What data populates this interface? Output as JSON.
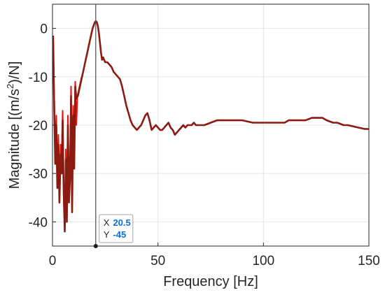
{
  "chart_data": {
    "type": "line",
    "xlabel": "Frequency [Hz]",
    "ylabel_main": "Magnitude [(m/s",
    "ylabel_sup": "2",
    "ylabel_tail": ")/N]",
    "xlim": [
      0,
      150
    ],
    "ylim": [
      -45,
      5
    ],
    "xticks": [
      "0",
      "50",
      "100",
      "150"
    ],
    "yticks": [
      "0",
      "-10",
      "-20",
      "-30",
      "-40"
    ],
    "grid": true,
    "colors": {
      "dark_series": "#8b1a10",
      "bright_series": "#e8140c",
      "axis": "#262626",
      "grid": "#e5e5e5",
      "datatip_value": "#0b6fd6"
    },
    "series": [
      {
        "values_x": [
          0.3,
          0.8,
          1.3,
          1.8,
          2.3,
          2.8,
          3.3,
          3.8,
          4.3,
          4.8,
          5.3,
          5.8,
          6.3,
          6.8,
          7.3,
          7.8,
          8.3,
          8.8,
          9.3,
          9.8,
          10.3,
          10.8,
          11.3,
          11.8,
          12.3,
          12.8,
          13.3,
          13.8
        ],
        "values_y": [
          -2,
          -14,
          -26,
          -18,
          -30,
          -22,
          -35,
          -24,
          -28,
          -17,
          -32,
          -41,
          -25,
          -38,
          -18,
          -34,
          -29,
          -12,
          -36,
          -16,
          -27,
          -11,
          -20,
          -14,
          -13,
          -12,
          -11,
          -10
        ]
      },
      {
        "values_x": [
          0.3,
          0.8,
          1.3,
          1.8,
          2.3,
          2.8,
          3.3,
          3.8,
          4.3,
          4.8,
          5.3,
          5.8,
          6.3,
          6.8,
          7.3,
          7.8,
          8.3,
          8.8,
          9.3,
          9.8,
          10.3,
          10.8,
          11.3,
          12,
          13,
          14,
          15,
          16,
          17,
          18,
          19,
          20,
          20.5,
          21,
          21.5,
          22,
          22.5,
          23,
          23.5,
          24,
          25,
          26,
          27,
          28,
          29,
          30,
          31,
          32,
          33,
          34,
          35,
          36,
          37,
          38,
          39,
          40,
          41,
          42,
          43,
          44,
          45,
          46,
          47,
          48,
          49,
          50,
          51,
          52,
          53,
          54,
          55,
          56,
          57,
          58,
          59,
          60,
          61,
          62,
          63,
          64,
          65,
          66,
          67,
          68,
          70,
          72,
          75,
          78,
          80,
          85,
          90,
          95,
          100,
          103,
          105,
          108,
          110,
          112,
          115,
          118,
          120,
          123,
          125,
          128,
          130,
          133,
          135,
          138,
          140,
          143,
          145,
          148,
          150
        ],
        "values_y": [
          -1.5,
          -16,
          -28,
          -20,
          -33,
          -24,
          -36,
          -26,
          -30,
          -19,
          -34,
          -42,
          -27,
          -40,
          -20,
          -36,
          -31,
          -14,
          -38,
          -18,
          -29,
          -12,
          -14.5,
          -14,
          -12,
          -10,
          -8,
          -6,
          -4,
          -2,
          0,
          1.2,
          1.5,
          1.3,
          0.5,
          -1,
          -3,
          -5,
          -6.5,
          -6,
          -7,
          -7,
          -7.5,
          -8,
          -9,
          -9.5,
          -10,
          -10.5,
          -12,
          -14,
          -16,
          -17.5,
          -19,
          -20,
          -20.5,
          -21,
          -20.5,
          -20,
          -19,
          -18,
          -17.5,
          -19,
          -21,
          -20.5,
          -20,
          -20.5,
          -21,
          -21,
          -20.5,
          -20,
          -19.5,
          -20.5,
          -21,
          -22,
          -21.5,
          -21,
          -20.5,
          -20,
          -20.5,
          -20,
          -20,
          -20,
          -19.5,
          -20,
          -20,
          -20,
          -19.5,
          -19,
          -19,
          -19,
          -19,
          -19.5,
          -19.5,
          -19.5,
          -19.5,
          -19.5,
          -19.5,
          -19,
          -19,
          -19,
          -19,
          -18.5,
          -18.5,
          -18.5,
          -19,
          -19.5,
          -19.5,
          -20,
          -20,
          -20.3,
          -20.5,
          -20.8,
          -20.8
        ]
      }
    ],
    "datatip": {
      "x_label": "X",
      "x_value": "20.5",
      "y_label": "Y",
      "y_value": "-45",
      "x": 20.5,
      "y": -45
    }
  }
}
